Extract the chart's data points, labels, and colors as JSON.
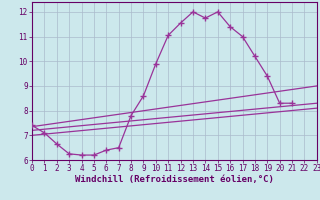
{
  "xlabel": "Windchill (Refroidissement éolien,°C)",
  "bg_color": "#cce8ec",
  "line_color": "#993399",
  "grid_color": "#aabbcc",
  "curve_x": [
    0,
    1,
    2,
    3,
    4,
    5,
    6,
    7,
    8,
    9,
    10,
    11,
    12,
    13,
    14,
    15,
    16,
    17,
    18,
    19,
    20,
    21
  ],
  "curve_y": [
    7.4,
    7.1,
    6.65,
    6.25,
    6.2,
    6.2,
    6.4,
    6.5,
    7.8,
    8.6,
    9.9,
    11.05,
    11.55,
    12.0,
    11.75,
    12.0,
    11.4,
    11.0,
    10.2,
    9.4,
    8.3,
    8.3
  ],
  "line1_x": [
    0,
    23
  ],
  "line1_y": [
    7.35,
    9.0
  ],
  "line2_x": [
    0,
    23
  ],
  "line2_y": [
    7.2,
    8.3
  ],
  "line3_x": [
    0,
    23
  ],
  "line3_y": [
    7.0,
    8.1
  ],
  "xlim": [
    0,
    23
  ],
  "ylim": [
    6.0,
    12.4
  ],
  "yticks": [
    6,
    7,
    8,
    9,
    10,
    11,
    12
  ],
  "xticks": [
    0,
    1,
    2,
    3,
    4,
    5,
    6,
    7,
    8,
    9,
    10,
    11,
    12,
    13,
    14,
    15,
    16,
    17,
    18,
    19,
    20,
    21,
    22,
    23
  ],
  "tick_fontsize": 5.5,
  "xlabel_fontsize": 6.5,
  "axis_color": "#660066"
}
